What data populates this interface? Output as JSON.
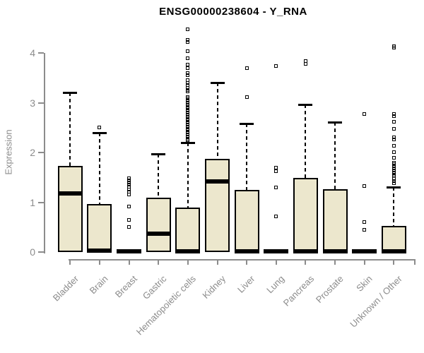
{
  "colors": {
    "box_fill": "#ece7cd",
    "box_border": "#000000",
    "median": "#000000",
    "axis": "#8c8c8c",
    "tick_text": "#8c8c8c",
    "title_text": "#000000"
  },
  "chart_data": {
    "type": "boxplot",
    "title": "ENSG00000238604 - Y_RNA",
    "xlabel": "",
    "ylabel": "Expression",
    "ylim": [
      0,
      4.5
    ],
    "yticks": [
      0,
      1,
      2,
      3,
      4
    ],
    "grid": false,
    "legend": false,
    "categories": [
      "Bladder",
      "Brain",
      "Breast",
      "Gastric",
      "Hematopoietic cells",
      "Kidney",
      "Liver",
      "Lung",
      "Pancreas",
      "Prostate",
      "Skin",
      "Unknown / Other"
    ],
    "boxes": [
      {
        "category": "Bladder",
        "low": 0,
        "q1": 0,
        "median": 1.18,
        "q3": 1.73,
        "high": 3.2,
        "outliers": []
      },
      {
        "category": "Brain",
        "low": 0,
        "q1": 0,
        "median": 0.03,
        "q3": 0.97,
        "high": 2.4,
        "outliers": [
          2.5
        ]
      },
      {
        "category": "Breast",
        "low": 0,
        "q1": 0,
        "median": 0.02,
        "q3": 0.03,
        "high": 0.03,
        "outliers": [
          1.48,
          1.44,
          1.4,
          1.36,
          1.31,
          1.26,
          1.21,
          1.16,
          0.91,
          0.64,
          0.5
        ]
      },
      {
        "category": "Gastric",
        "low": 0,
        "q1": 0,
        "median": 0.37,
        "q3": 1.09,
        "high": 1.97,
        "outliers": []
      },
      {
        "category": "Hematopoietic cells",
        "low": 0,
        "q1": 0,
        "median": 0.02,
        "q3": 0.89,
        "high": 2.2,
        "outliers": [
          4.47,
          4.26,
          4.22,
          4.04,
          3.9,
          3.76,
          3.7,
          3.6,
          3.55,
          3.45,
          3.4,
          3.35,
          3.3,
          3.26,
          3.22,
          3.12,
          3.08,
          3.04,
          3.0,
          2.96,
          2.92,
          2.88,
          2.84,
          2.8,
          2.76,
          2.72,
          2.68,
          2.64,
          2.6,
          2.56,
          2.52,
          2.48,
          2.44,
          2.4,
          2.36,
          2.32,
          2.28,
          2.25
        ]
      },
      {
        "category": "Kidney",
        "low": 0,
        "q1": 0,
        "median": 1.42,
        "q3": 1.87,
        "high": 3.4,
        "outliers": []
      },
      {
        "category": "Liver",
        "low": 0,
        "q1": 0,
        "median": 0.02,
        "q3": 1.25,
        "high": 2.58,
        "outliers": [
          3.69,
          3.12
        ]
      },
      {
        "category": "Lung",
        "low": 0,
        "q1": 0,
        "median": 0.02,
        "q3": 0.03,
        "high": 0.03,
        "outliers": [
          3.74,
          1.69,
          1.63,
          1.3,
          0.71
        ]
      },
      {
        "category": "Pancreas",
        "low": 0,
        "q1": 0,
        "median": 0.02,
        "q3": 1.49,
        "high": 2.97,
        "outliers": [
          3.83,
          3.78
        ]
      },
      {
        "category": "Prostate",
        "low": 0,
        "q1": 0,
        "median": 0.02,
        "q3": 1.26,
        "high": 2.61,
        "outliers": []
      },
      {
        "category": "Skin",
        "low": 0,
        "q1": 0,
        "median": 0.02,
        "q3": 0.03,
        "high": 0.03,
        "outliers": [
          2.77,
          1.33,
          0.6,
          0.45
        ]
      },
      {
        "category": "Unknown / Other",
        "low": 0,
        "q1": 0,
        "median": 0.02,
        "q3": 0.52,
        "high": 1.3,
        "outliers": [
          4.14,
          4.1,
          2.77,
          2.73,
          2.61,
          2.48,
          2.3,
          2.26,
          2.13,
          2.01,
          1.9,
          1.8,
          1.76,
          1.72,
          1.68,
          1.64,
          1.6,
          1.56,
          1.52,
          1.47,
          1.42,
          1.38
        ]
      }
    ]
  }
}
